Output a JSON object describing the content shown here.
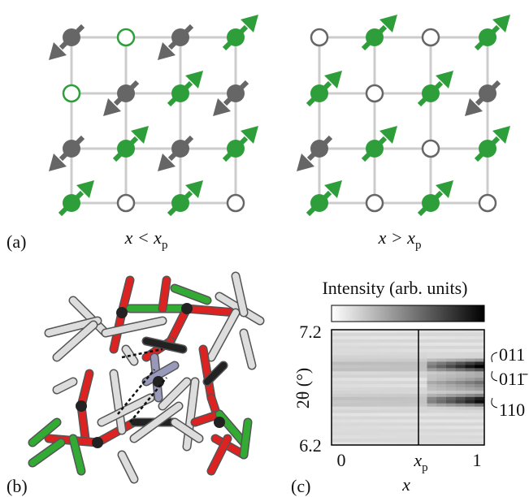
{
  "panel_a": {
    "label": "(a)",
    "captions": [
      {
        "text": "x < x",
        "subscript": "p"
      },
      {
        "text": "x > x",
        "subscript": "p"
      }
    ]
  },
  "panel_b": {
    "label": "(b)"
  },
  "panel_c": {
    "label": "(c)",
    "colorbar_label": "Intensity (arb. units)",
    "y_axis_label": "2θ (°)",
    "y_tick_labels": [
      "7.2",
      "6.2"
    ],
    "x_tick_labels": [
      "0",
      "1"
    ],
    "x_marker": {
      "text": "x",
      "subscript": "p"
    },
    "x_axis_label": "x",
    "peak_labels": [
      "011",
      "011̄",
      "110"
    ]
  }
}
